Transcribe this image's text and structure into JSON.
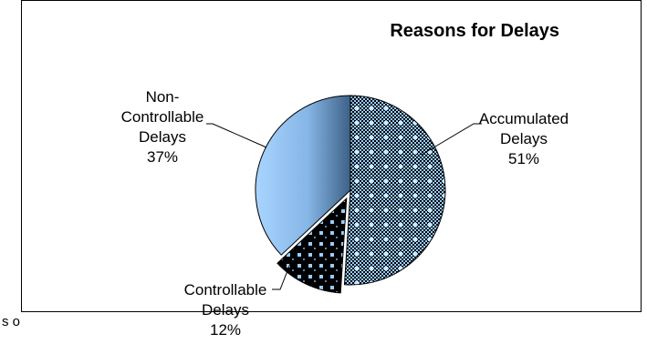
{
  "chart_data": {
    "type": "pie",
    "title": "Reasons for Delays",
    "slices": [
      {
        "label_lines": [
          "Accumulated",
          "Delays"
        ],
        "percent_label": "51%",
        "value": 51,
        "pattern": "checker-dots"
      },
      {
        "label_lines": [
          "Controllable",
          "Delays"
        ],
        "percent_label": "12%",
        "value": 12,
        "pattern": "dark-dots",
        "exploded": true
      },
      {
        "label_lines": [
          "Non-",
          "Controllable",
          "Delays"
        ],
        "percent_label": "37%",
        "value": 37,
        "pattern": "gradient"
      }
    ],
    "colors": {
      "light_blue": "#99ccff",
      "dark_blue": "#4a6f93",
      "black": "#000000"
    },
    "legend": "none"
  },
  "clipped_text": "s o"
}
